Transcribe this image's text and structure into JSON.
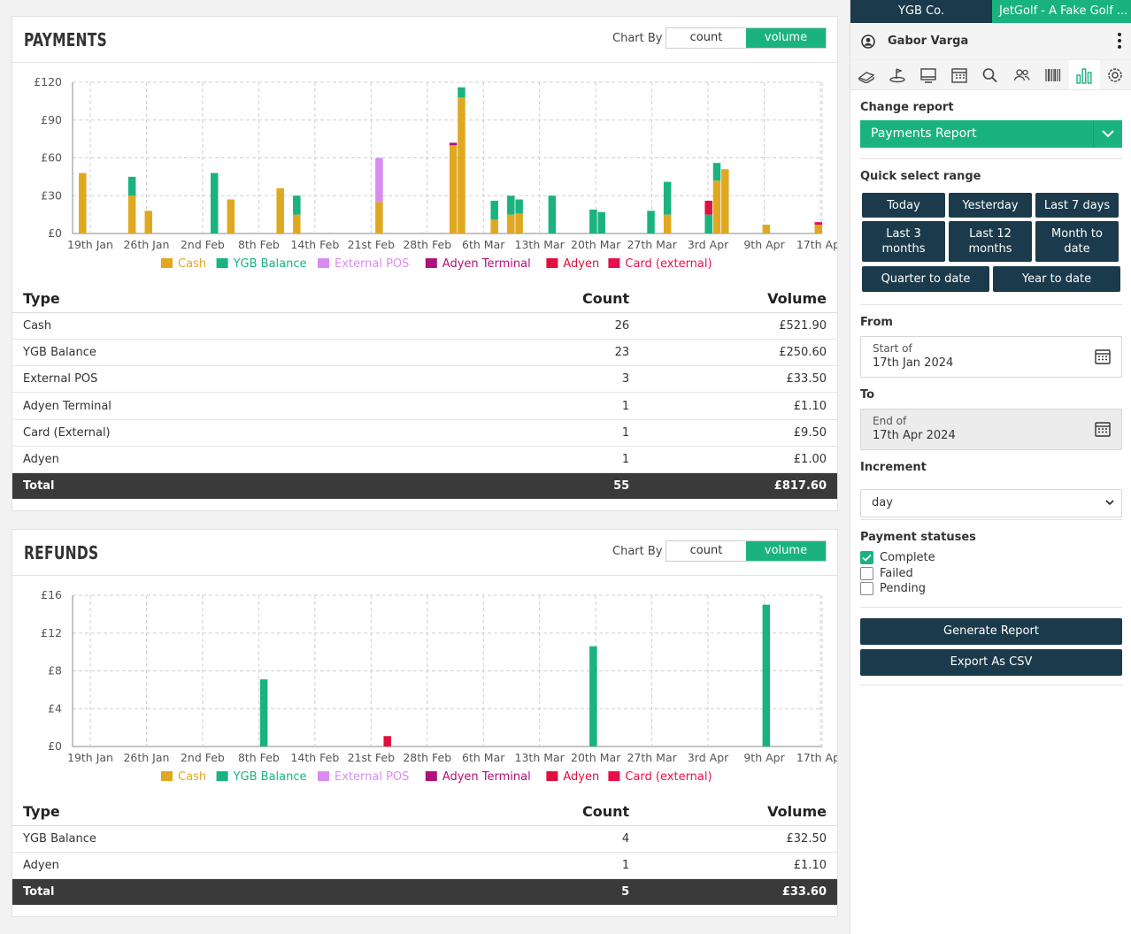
{
  "payments": {
    "title": "PAYMENTS",
    "chart_by_label": "Chart By",
    "toggle_count": "count",
    "toggle_volume": "volume",
    "col_type": "Type",
    "col_count": "Count",
    "col_volume": "Volume",
    "rows": [
      {
        "type": "Cash",
        "count": "26",
        "volume": "£521.90"
      },
      {
        "type": "YGB Balance",
        "count": "23",
        "volume": "£250.60"
      },
      {
        "type": "External POS",
        "count": "3",
        "volume": "£33.50"
      },
      {
        "type": "Adyen Terminal",
        "count": "1",
        "volume": "£1.10"
      },
      {
        "type": "Card (External)",
        "count": "1",
        "volume": "£9.50"
      },
      {
        "type": "Adyen",
        "count": "1",
        "volume": "£1.00"
      }
    ],
    "total": {
      "type": "Total",
      "count": "55",
      "volume": "£817.60"
    }
  },
  "refunds": {
    "title": "REFUNDS",
    "chart_by_label": "Chart By",
    "toggle_count": "count",
    "toggle_volume": "volume",
    "col_type": "Type",
    "col_count": "Count",
    "col_volume": "Volume",
    "rows": [
      {
        "type": "YGB Balance",
        "count": "4",
        "volume": "£32.50"
      },
      {
        "type": "Adyen",
        "count": "1",
        "volume": "£1.10"
      }
    ],
    "total": {
      "type": "Total",
      "count": "5",
      "volume": "£33.60"
    }
  },
  "chart_data": [
    {
      "type": "bar",
      "stacked": true,
      "y_unit": "£",
      "ylim": [
        0,
        120
      ],
      "yticks": [
        "£0",
        "£30",
        "£60",
        "£90",
        "£120"
      ],
      "ytick_values": [
        0,
        30,
        60,
        90,
        120
      ],
      "x_tick_labels": [
        "19th Jan",
        "26th Jan",
        "2nd Feb",
        "8th Feb",
        "14th Feb",
        "21st Feb",
        "28th Feb",
        "6th Mar",
        "13th Mar",
        "20th Mar",
        "27th Mar",
        "3rd Apr",
        "9th Apr",
        "17th Apr"
      ],
      "x_days_range": [
        0,
        91
      ],
      "grid": true,
      "legend_position": "bottom",
      "series": [
        {
          "name": "Cash",
          "color": "#e0a820",
          "points": [
            [
              1,
              48
            ],
            [
              7,
              30
            ],
            [
              9,
              18
            ],
            [
              19,
              27
            ],
            [
              25,
              36
            ],
            [
              27,
              15
            ],
            [
              37,
              25
            ],
            [
              46,
              70
            ],
            [
              47,
              108
            ],
            [
              51,
              11
            ],
            [
              53,
              15
            ],
            [
              54,
              16
            ],
            [
              72,
              15
            ],
            [
              78,
              42
            ],
            [
              79,
              51
            ],
            [
              84,
              7
            ],
            [
              100,
              7
            ]
          ]
        },
        {
          "name": "YGB Balance",
          "color": "#1ab37f",
          "points": [
            [
              7,
              15
            ],
            [
              17,
              48
            ],
            [
              27,
              15
            ],
            [
              47,
              8
            ],
            [
              51,
              15
            ],
            [
              53,
              15
            ],
            [
              54,
              11
            ],
            [
              58,
              30
            ],
            [
              63,
              19
            ],
            [
              64,
              17
            ],
            [
              70,
              18
            ],
            [
              72,
              26
            ],
            [
              77,
              15
            ],
            [
              78,
              14
            ]
          ]
        },
        {
          "name": "External POS",
          "color": "#d98cf0",
          "points": [
            [
              37,
              35
            ]
          ]
        },
        {
          "name": "Adyen Terminal",
          "color": "#b0107a",
          "points": [
            [
              46,
              2
            ]
          ]
        },
        {
          "name": "Adyen",
          "color": "#e0103c",
          "points": [
            [
              77,
              11
            ]
          ]
        },
        {
          "name": "Card (external)",
          "color": "#e8104c",
          "points": [
            [
              91,
              2
            ]
          ]
        }
      ]
    },
    {
      "type": "bar",
      "stacked": true,
      "y_unit": "£",
      "ylim": [
        0,
        16
      ],
      "yticks": [
        "£0",
        "£4",
        "£8",
        "£12",
        "£16"
      ],
      "ytick_values": [
        0,
        4,
        8,
        12,
        16
      ],
      "x_tick_labels": [
        "19th Jan",
        "26th Jan",
        "2nd Feb",
        "8th Feb",
        "14th Feb",
        "21st Feb",
        "28th Feb",
        "6th Mar",
        "13th Mar",
        "20th Mar",
        "27th Mar",
        "3rd Apr",
        "9th Apr",
        "17th Apr"
      ],
      "x_days_range": [
        0,
        91
      ],
      "grid": true,
      "legend_position": "bottom",
      "series": [
        {
          "name": "Cash",
          "color": "#e0a820",
          "points": []
        },
        {
          "name": "YGB Balance",
          "color": "#1ab37f",
          "points": [
            [
              23,
              7.1
            ],
            [
              63,
              10.6
            ],
            [
              84,
              15
            ]
          ]
        },
        {
          "name": "External POS",
          "color": "#d98cf0",
          "points": []
        },
        {
          "name": "Adyen Terminal",
          "color": "#b0107a",
          "points": []
        },
        {
          "name": "Adyen",
          "color": "#e0103c",
          "points": [
            [
              38,
              1.1
            ]
          ]
        },
        {
          "name": "Card (external)",
          "color": "#e8104c",
          "points": []
        }
      ]
    }
  ],
  "sidebar": {
    "company": "YGB Co.",
    "club": "JetGolf - A Fake Golf ...",
    "user": "Gabor Varga",
    "icons": [
      "golf-swing-icon",
      "golf-flag-icon",
      "monitor-icon",
      "calendar-icon",
      "search-icon",
      "users-icon",
      "barcode-icon",
      "bar-chart-icon",
      "settings-icon"
    ],
    "change_report_label": "Change report",
    "report_selected": "Payments Report",
    "quick_select_label": "Quick select range",
    "quick_buttons": [
      "Today",
      "Yesterday",
      "Last 7 days",
      "Last 3 months",
      "Last 12 months",
      "Month to date",
      "Quarter to date",
      "Year to date"
    ],
    "from_label": "From",
    "from_small": "Start of",
    "from_value": "17th Jan 2024",
    "to_label": "To",
    "to_small": "End of",
    "to_value": "17th Apr 2024",
    "increment_label": "Increment",
    "increment_value": "day",
    "statuses_label": "Payment statuses",
    "statuses": [
      {
        "label": "Complete",
        "checked": true
      },
      {
        "label": "Failed",
        "checked": false
      },
      {
        "label": "Pending",
        "checked": false
      }
    ],
    "generate_label": "Generate Report",
    "export_label": "Export As CSV"
  }
}
